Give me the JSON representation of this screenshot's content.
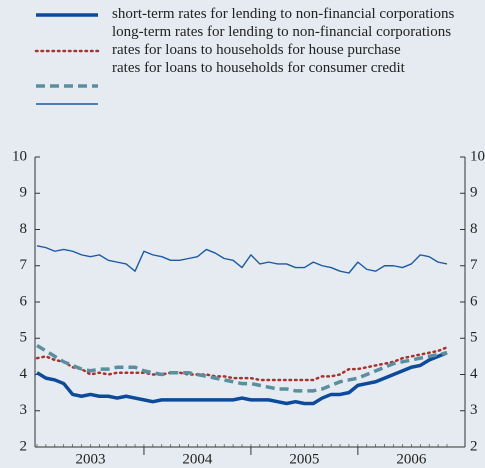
{
  "chart_data": {
    "type": "line",
    "categories": [
      null,
      null,
      null,
      null,
      null,
      null,
      "2003",
      null,
      null,
      null,
      null,
      null,
      null,
      null,
      null,
      null,
      null,
      null,
      "2004",
      null,
      null,
      null,
      null,
      null,
      null,
      null,
      null,
      null,
      null,
      null,
      "2005",
      null,
      null,
      null,
      null,
      null,
      null,
      null,
      null,
      null,
      null,
      null,
      "2006",
      null,
      null,
      null,
      null
    ],
    "ylim": [
      2,
      10
    ],
    "yticks": [
      2,
      3,
      4,
      5,
      6,
      7,
      8,
      9,
      10
    ],
    "series": [
      {
        "name": "short-term rates for lending to non-financial corporations",
        "color": "#0d4a9b",
        "style": "thick",
        "values": [
          4.05,
          3.9,
          3.85,
          3.75,
          3.45,
          3.4,
          3.45,
          3.4,
          3.4,
          3.35,
          3.4,
          3.35,
          3.3,
          3.25,
          3.3,
          3.3,
          3.3,
          3.3,
          3.3,
          3.3,
          3.3,
          3.3,
          3.3,
          3.35,
          3.3,
          3.3,
          3.3,
          3.25,
          3.2,
          3.25,
          3.2,
          3.2,
          3.35,
          3.45,
          3.45,
          3.5,
          3.7,
          3.75,
          3.8,
          3.9,
          4.0,
          4.1,
          4.2,
          4.25,
          4.4,
          4.5,
          4.6
        ]
      },
      {
        "name": "long-term rates for lending to non-financial corporations",
        "color": "#a8322d",
        "style": "dotted",
        "values": [
          4.45,
          4.5,
          4.4,
          4.35,
          4.2,
          4.15,
          4.0,
          4.05,
          4.0,
          4.05,
          4.05,
          4.05,
          4.05,
          4.0,
          4.0,
          4.05,
          4.05,
          4.0,
          4.0,
          4.0,
          3.95,
          3.95,
          3.9,
          3.9,
          3.9,
          3.85,
          3.85,
          3.85,
          3.85,
          3.85,
          3.85,
          3.85,
          3.95,
          3.95,
          4.0,
          4.15,
          4.15,
          4.2,
          4.25,
          4.3,
          4.35,
          4.45,
          4.5,
          4.55,
          4.6,
          4.65,
          4.75
        ]
      },
      {
        "name": "rates for loans to households for house purchase",
        "color": "#5a8fa0",
        "style": "dashed",
        "values": [
          4.8,
          4.65,
          4.5,
          4.35,
          4.25,
          4.15,
          4.1,
          4.15,
          4.15,
          4.2,
          4.2,
          4.2,
          4.1,
          4.05,
          4.0,
          4.05,
          4.05,
          4.05,
          4.0,
          3.95,
          3.9,
          3.85,
          3.8,
          3.75,
          3.75,
          3.7,
          3.65,
          3.6,
          3.6,
          3.55,
          3.55,
          3.55,
          3.6,
          3.7,
          3.8,
          3.85,
          3.9,
          4.0,
          4.1,
          4.2,
          4.3,
          4.35,
          4.4,
          4.45,
          4.5,
          4.55,
          4.6
        ]
      },
      {
        "name": "rates for loans to households for consumer credit",
        "color": "#1b5aa6",
        "style": "thin",
        "values": [
          7.55,
          7.5,
          7.4,
          7.45,
          7.4,
          7.3,
          7.25,
          7.3,
          7.15,
          7.1,
          7.05,
          6.85,
          7.4,
          7.3,
          7.25,
          7.15,
          7.15,
          7.2,
          7.25,
          7.45,
          7.35,
          7.2,
          7.15,
          6.95,
          7.3,
          7.05,
          7.1,
          7.05,
          7.05,
          6.95,
          6.95,
          7.1,
          7.0,
          6.95,
          6.85,
          6.8,
          7.1,
          6.9,
          6.85,
          7.0,
          7.0,
          6.95,
          7.05,
          7.3,
          7.25,
          7.1,
          7.05
        ]
      }
    ]
  }
}
